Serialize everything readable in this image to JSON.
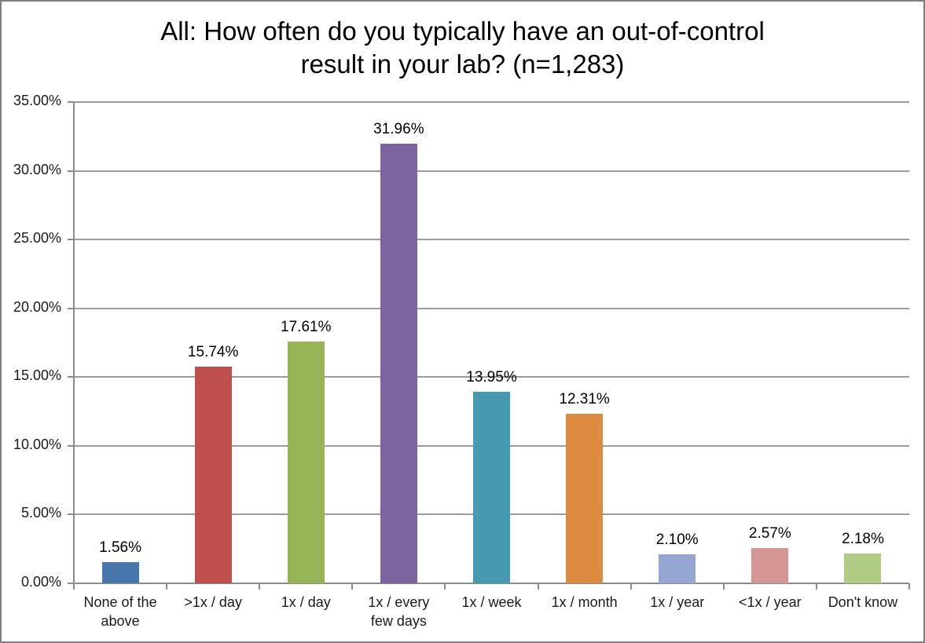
{
  "title": {
    "line1": "All: How often do you typically have an out-of-control",
    "line2": "result in your lab? (n=1,283)"
  },
  "chart_data": {
    "type": "bar",
    "title": "All: How often do you typically have an out-of-control result in your lab? (n=1,283)",
    "n": "1,283",
    "categories": [
      "None of the above",
      ">1x / day",
      "1x / day",
      "1x / every few days",
      "1x / week",
      "1x / month",
      "1x / year",
      "<1x / year",
      "Don't know"
    ],
    "values": [
      1.56,
      15.74,
      17.61,
      31.96,
      13.95,
      12.31,
      2.1,
      2.57,
      2.18
    ],
    "value_labels": [
      "1.56%",
      "15.74%",
      "17.61%",
      "31.96%",
      "13.95%",
      "12.31%",
      "2.10%",
      "2.57%",
      "2.18%"
    ],
    "bar_colors": [
      "#4776AC",
      "#BF504D",
      "#97B556",
      "#7D64A0",
      "#4799B2",
      "#DD8B40",
      "#95A6D2",
      "#D39694",
      "#B0CB84"
    ],
    "xlabel": "",
    "ylabel": "",
    "ylim": [
      0,
      35
    ],
    "ytick_step": 5,
    "ytick_labels": [
      "0.00%",
      "5.00%",
      "10.00%",
      "15.00%",
      "20.00%",
      "25.00%",
      "30.00%",
      "35.00%"
    ],
    "grid": true,
    "legend": "none"
  },
  "colors": {
    "background": "#ffffff",
    "border": "#7f7f7f",
    "gridline": "#9c9c9c",
    "axis": "#8c8c8c",
    "text": "#000000"
  }
}
